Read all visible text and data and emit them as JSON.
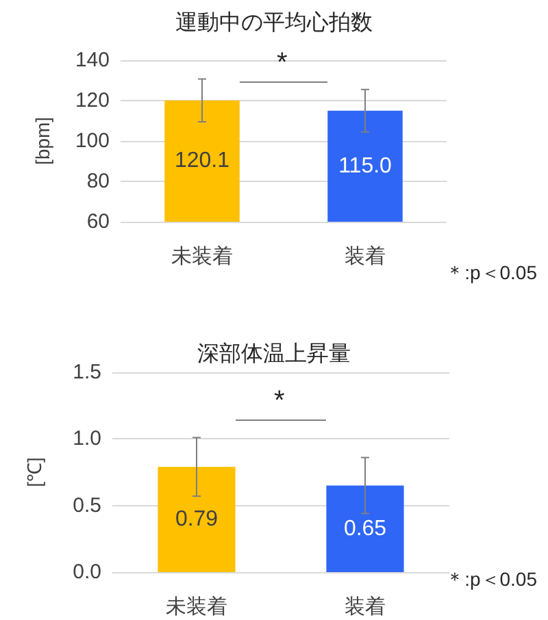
{
  "chart_data": [
    {
      "type": "bar",
      "title": "運動中の平均心拍数",
      "ylabel": "[bpm]",
      "categories": [
        "未装着",
        "装着"
      ],
      "values": [
        120.1,
        115.0
      ],
      "value_labels": [
        "120.1",
        "115.0"
      ],
      "colors": [
        "#ffc000",
        "#2f66f5"
      ],
      "errors": [
        10.6,
        10.5
      ],
      "ylim": [
        60,
        140
      ],
      "yticks": [
        60,
        80,
        100,
        120,
        140
      ],
      "grid": "y",
      "annotations": [
        "*",
        "＊:p＜0.05"
      ]
    },
    {
      "type": "bar",
      "title": "深部体温上昇量",
      "ylabel": "[℃]",
      "categories": [
        "未装着",
        "装着"
      ],
      "values": [
        0.79,
        0.65
      ],
      "value_labels": [
        "0.79",
        "0.65"
      ],
      "colors": [
        "#ffc000",
        "#2f66f5"
      ],
      "errors": [
        0.22,
        0.21
      ],
      "ylim": [
        0,
        1.5
      ],
      "yticks": [
        {
          "value": 0,
          "label": "0.0"
        },
        {
          "value": 0.5,
          "label": "0.5"
        },
        {
          "value": 1,
          "label": "1.0"
        },
        {
          "value": 1.5,
          "label": "1.5"
        }
      ],
      "grid": "y",
      "annotations": [
        "*",
        "＊:p＜0.05"
      ]
    }
  ]
}
